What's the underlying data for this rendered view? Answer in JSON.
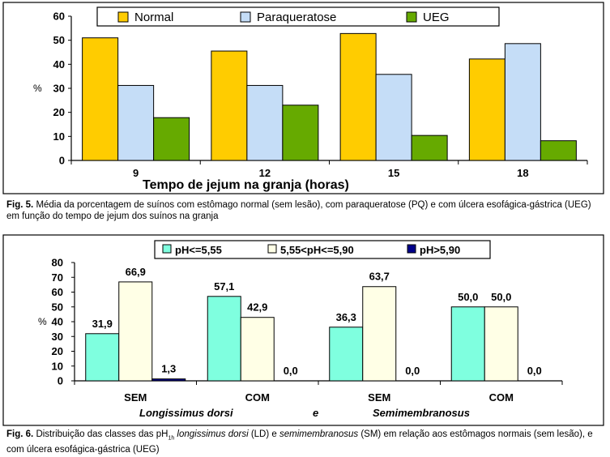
{
  "chart_data": [
    {
      "type": "bar",
      "categories": [
        "9",
        "12",
        "15",
        "18"
      ],
      "series": [
        {
          "name": "Normal",
          "values": [
            51,
            45.5,
            52.8,
            42.2
          ],
          "color": "#FFCC00"
        },
        {
          "name": "Paraqueratose",
          "values": [
            31.2,
            31.2,
            35.8,
            48.6
          ],
          "color": "#C5DDF7"
        },
        {
          "name": "UEG",
          "values": [
            17.8,
            23,
            10.4,
            8.2
          ],
          "color": "#66AA00"
        }
      ],
      "ylabel": "%",
      "xlabel": "Tempo de jejum na granja (horas)",
      "ylim": [
        0,
        60
      ],
      "yticks": [
        "0",
        "10",
        "20",
        "30",
        "40",
        "50",
        "60"
      ],
      "legend": "top"
    },
    {
      "type": "bar",
      "categories": [
        "SEM",
        "COM",
        "SEM",
        "COM"
      ],
      "groups": [
        "Longissimus dorsi",
        "e",
        "Semimembranosus"
      ],
      "series": [
        {
          "name": "pH<=5,55",
          "values": [
            31.9,
            57.1,
            36.3,
            50.0
          ],
          "labels": [
            "31,9",
            "57,1",
            "36,3",
            "50,0"
          ],
          "color": "#7FFFDF"
        },
        {
          "name": "5,55<pH<=5,90",
          "values": [
            66.9,
            42.9,
            63.7,
            50.0
          ],
          "labels": [
            "66,9",
            "42,9",
            "63,7",
            "50,0"
          ],
          "color": "#FFFFE6"
        },
        {
          "name": "pH>5,90",
          "values": [
            1.3,
            0,
            0,
            0
          ],
          "labels": [
            "1,3",
            "0,0",
            "0,0",
            "0,0"
          ],
          "color": "#00008B"
        }
      ],
      "ylabel": "%",
      "ylim": [
        0,
        80
      ],
      "yticks": [
        "0",
        "10",
        "20",
        "30",
        "40",
        "50",
        "60",
        "70",
        "80"
      ],
      "legend": "top"
    }
  ],
  "captions": {
    "fig5_label": "Fig. 5.",
    "fig5_text": "Média da porcentagem de suínos com estômago normal (sem lesão), com paraqueratose (PQ) e com úlcera esofágica-gástrica (UEG) em função do tempo de jejum dos suínos na granja",
    "fig6_label": "Fig. 6.",
    "fig6_text_a": "Distribuição das classes das pH",
    "fig6_sub": "1h",
    "fig6_text_b": " longissimus dorsi",
    "fig6_text_c": " (LD) e ",
    "fig6_text_d": "semimembranosus",
    "fig6_text_e": " (SM) em relação aos estômagos normais (sem lesão), e com úlcera esofágica-gástrica (UEG)"
  }
}
